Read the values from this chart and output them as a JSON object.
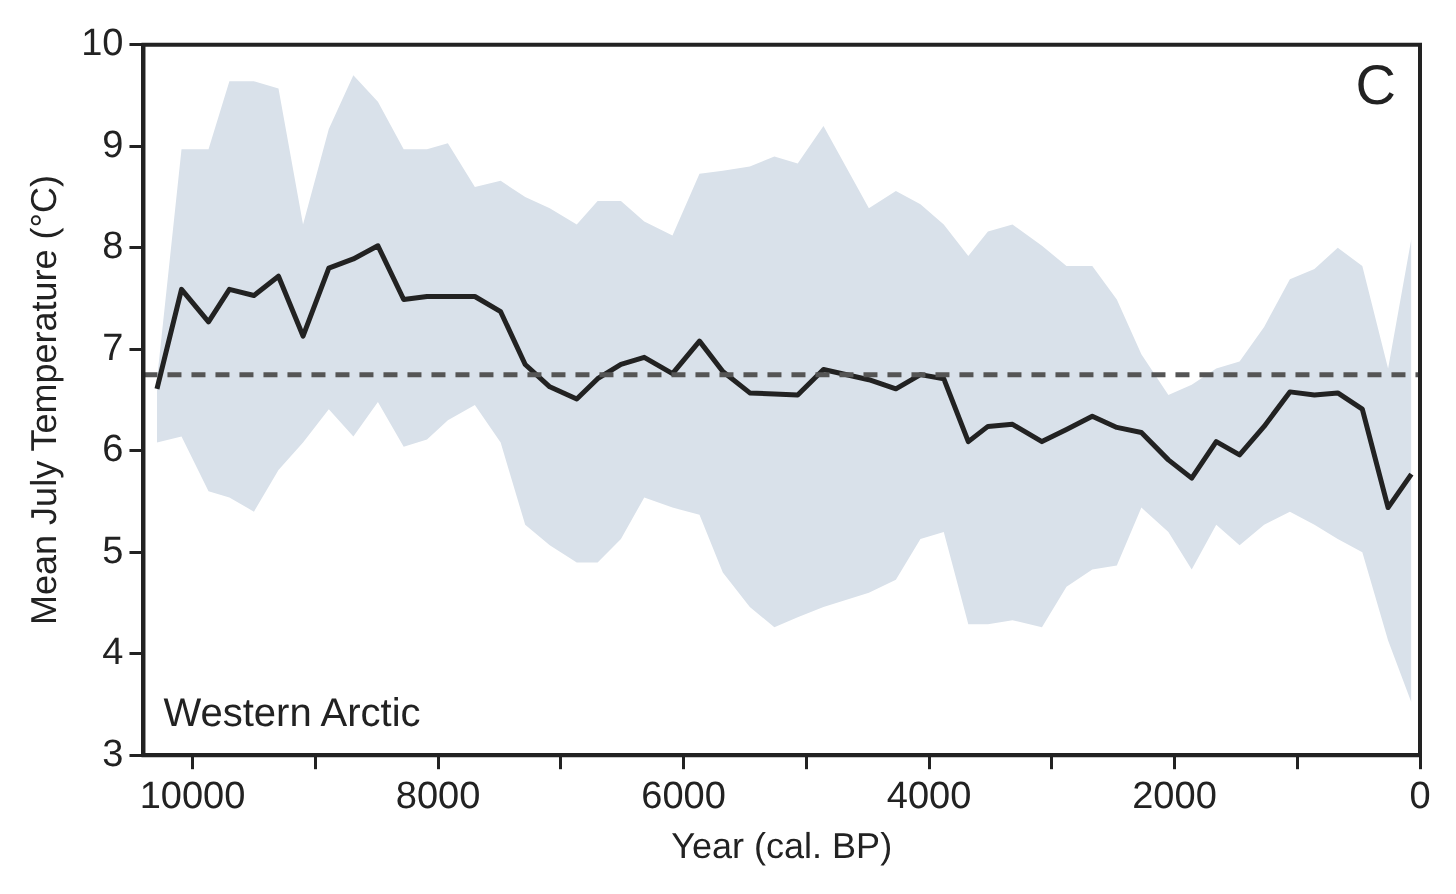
{
  "chart_data": {
    "type": "line",
    "xlabel": "Year (cal. BP)",
    "ylabel": "Mean July Temperature (°C)",
    "xlim": [
      10400,
      0
    ],
    "ylim": [
      3,
      10
    ],
    "xticks": [
      10000,
      {
        "value": 9000,
        "label": null
      },
      8000,
      {
        "value": 7000,
        "label": null
      },
      6000,
      {
        "value": 5000,
        "label": null
      },
      4000,
      {
        "value": 3000,
        "label": null
      },
      2000,
      {
        "value": 1000,
        "label": null
      },
      0
    ],
    "yticks": [
      3,
      4,
      5,
      6,
      7,
      8,
      9,
      10
    ],
    "grid": false,
    "legend": false,
    "marker": "none",
    "line_style": "solid",
    "ref_lines": [
      {
        "axis": "y",
        "value": 6.75,
        "color": "#555555",
        "line_style": "dashed"
      }
    ],
    "annotations": [
      "C",
      "Western Arctic"
    ],
    "series": [
      {
        "color": "#222222",
        "x": [
          10290,
          10090,
          9870,
          9700,
          9500,
          9300,
          9100,
          8890,
          8690,
          8490,
          8280,
          8090,
          7920,
          7700,
          7490,
          7290,
          7090,
          6870,
          6700,
          6510,
          6320,
          6090,
          5870,
          5680,
          5460,
          5260,
          5070,
          4860,
          4490,
          4270,
          4070,
          3880,
          3680,
          3520,
          3320,
          3080,
          2880,
          2670,
          2470,
          2270,
          2050,
          1860,
          1660,
          1470,
          1270,
          1060,
          860,
          670,
          470,
          260,
          70
        ],
        "values": [
          6.61,
          7.59,
          7.27,
          7.59,
          7.53,
          7.72,
          7.13,
          7.8,
          7.89,
          8.02,
          7.49,
          7.52,
          7.52,
          7.52,
          7.37,
          6.85,
          6.63,
          6.51,
          6.71,
          6.85,
          6.92,
          6.76,
          7.08,
          6.78,
          6.57,
          6.56,
          6.55,
          6.8,
          6.7,
          6.61,
          6.75,
          6.71,
          6.09,
          6.24,
          6.26,
          6.09,
          6.21,
          6.34,
          6.23,
          6.18,
          5.91,
          5.73,
          6.09,
          5.96,
          6.24,
          6.58,
          6.55,
          6.57,
          6.41,
          5.44,
          5.77
        ],
        "lower": [
          6.08,
          6.14,
          5.6,
          5.54,
          5.4,
          5.81,
          6.08,
          6.41,
          6.14,
          6.48,
          6.04,
          6.11,
          6.3,
          6.45,
          6.08,
          5.27,
          5.07,
          4.9,
          4.9,
          5.13,
          5.54,
          5.44,
          5.37,
          4.8,
          4.46,
          4.26,
          4.36,
          4.46,
          4.6,
          4.73,
          5.13,
          5.2,
          4.29,
          4.29,
          4.33,
          4.26,
          4.66,
          4.83,
          4.87,
          5.44,
          5.2,
          4.83,
          5.27,
          5.07,
          5.27,
          5.4,
          5.27,
          5.13,
          5,
          4.13,
          3.52
        ],
        "upper": [
          6.7,
          8.97,
          8.97,
          9.64,
          9.64,
          9.57,
          8.23,
          9.17,
          9.7,
          9.44,
          8.97,
          8.97,
          9.03,
          8.6,
          8.66,
          8.5,
          8.39,
          8.23,
          8.46,
          8.46,
          8.26,
          8.12,
          8.73,
          8.76,
          8.8,
          8.9,
          8.83,
          9.2,
          8.39,
          8.56,
          8.43,
          8.23,
          7.92,
          8.16,
          8.23,
          8.02,
          7.82,
          7.82,
          7.49,
          6.95,
          6.55,
          6.65,
          6.81,
          6.88,
          7.22,
          7.69,
          7.79,
          8,
          7.82,
          6.81,
          8.09
        ]
      }
    ]
  }
}
